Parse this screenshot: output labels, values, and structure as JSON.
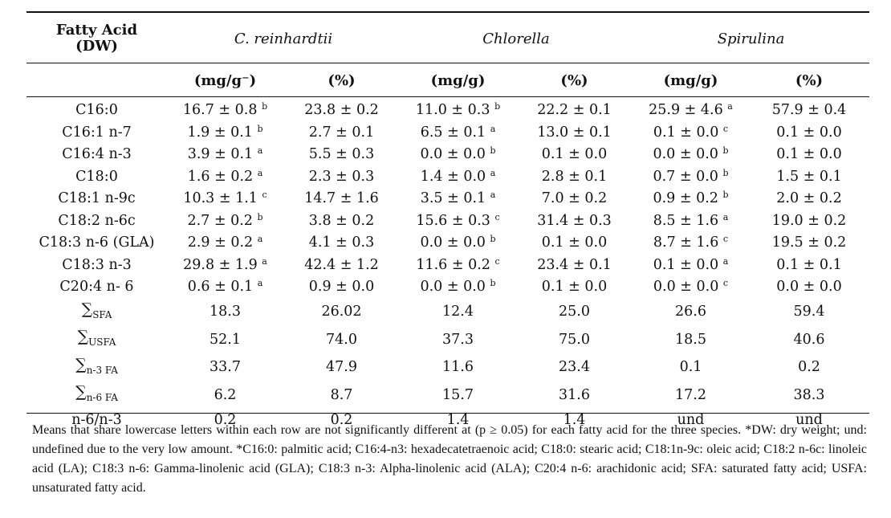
{
  "header": {
    "fatty_acid_label_line1": "Fatty Acid",
    "fatty_acid_label_line2": "(DW)",
    "species": [
      "C. reinhardtii",
      "Chlorella",
      "Spirulina"
    ],
    "units": [
      "(mg/g⁻)",
      "(%)",
      "(mg/g)",
      "(%)",
      "(mg/g)",
      "(%)"
    ]
  },
  "rows": [
    {
      "label": "C16:0",
      "cells": [
        {
          "v": "16.7 ± 0.8",
          "sup": "b"
        },
        {
          "v": "23.8 ± 0.2"
        },
        {
          "v": "11.0 ± 0.3",
          "sup": "b"
        },
        {
          "v": "22.2 ± 0.1"
        },
        {
          "v": "25.9 ± 4.6",
          "sup": "a"
        },
        {
          "v": "57.9 ± 0.4"
        }
      ]
    },
    {
      "label": "C16:1 n-7",
      "cells": [
        {
          "v": "1.9 ± 0.1",
          "sup": "b"
        },
        {
          "v": "2.7 ± 0.1"
        },
        {
          "v": "6.5 ± 0.1",
          "sup": "a"
        },
        {
          "v": "13.0 ± 0.1"
        },
        {
          "v": "0.1 ± 0.0",
          "sup": "c"
        },
        {
          "v": "0.1 ± 0.0"
        }
      ]
    },
    {
      "label": "C16:4 n-3",
      "cells": [
        {
          "v": "3.9 ± 0.1",
          "sup": "a"
        },
        {
          "v": "5.5 ± 0.3"
        },
        {
          "v": "0.0 ± 0.0",
          "sup": "b"
        },
        {
          "v": "0.1 ± 0.0"
        },
        {
          "v": "0.0 ± 0.0",
          "sup": "b"
        },
        {
          "v": "0.1 ± 0.0"
        }
      ]
    },
    {
      "label": "C18:0",
      "cells": [
        {
          "v": "1.6 ± 0.2",
          "sup": "a"
        },
        {
          "v": "2.3 ± 0.3"
        },
        {
          "v": "1.4 ± 0.0",
          "sup": "a"
        },
        {
          "v": "2.8 ± 0.1"
        },
        {
          "v": "0.7 ± 0.0",
          "sup": "b"
        },
        {
          "v": "1.5 ± 0.1"
        }
      ]
    },
    {
      "label": "C18:1 n-9c",
      "cells": [
        {
          "v": "10.3 ± 1.1",
          "sup": "c"
        },
        {
          "v": "14.7 ± 1.6"
        },
        {
          "v": "3.5 ± 0.1",
          "sup": "a"
        },
        {
          "v": "7.0 ± 0.2"
        },
        {
          "v": "0.9 ± 0.2",
          "sup": "b"
        },
        {
          "v": "2.0 ± 0.2"
        }
      ]
    },
    {
      "label": "C18:2 n-6c",
      "cells": [
        {
          "v": "2.7 ± 0.2",
          "sup": "b"
        },
        {
          "v": "3.8 ± 0.2"
        },
        {
          "v": "15.6 ± 0.3",
          "sup": "c"
        },
        {
          "v": "31.4 ± 0.3"
        },
        {
          "v": "8.5 ± 1.6",
          "sup": "a"
        },
        {
          "v": "19.0 ± 0.2"
        }
      ]
    },
    {
      "label": "C18:3 n-6 (GLA)",
      "cells": [
        {
          "v": "2.9 ± 0.2",
          "sup": "a"
        },
        {
          "v": "4.1 ± 0.3"
        },
        {
          "v": "0.0 ± 0.0",
          "sup": "b"
        },
        {
          "v": "0.1 ± 0.0"
        },
        {
          "v": "8.7 ± 1.6",
          "sup": "c"
        },
        {
          "v": "19.5 ± 0.2"
        }
      ]
    },
    {
      "label": "C18:3 n-3",
      "cells": [
        {
          "v": "29.8 ± 1.9",
          "sup": "a"
        },
        {
          "v": "42.4 ± 1.2"
        },
        {
          "v": "11.6 ± 0.2",
          "sup": "c"
        },
        {
          "v": "23.4 ± 0.1"
        },
        {
          "v": "0.1 ± 0.0",
          "sup": "a"
        },
        {
          "v": "0.1 ± 0.1"
        }
      ]
    },
    {
      "label": "C20:4 n- 6",
      "cells": [
        {
          "v": "0.6 ± 0.1",
          "sup": "a"
        },
        {
          "v": "0.9 ± 0.0"
        },
        {
          "v": "0.0 ± 0.0",
          "sup": "b"
        },
        {
          "v": "0.1 ± 0.0"
        },
        {
          "v": "0.0 ± 0.0",
          "sup": "c"
        },
        {
          "v": "0.0 ± 0.0"
        }
      ]
    },
    {
      "label": "∑SFA",
      "sum": "SFA",
      "cells": [
        {
          "v": "18.3"
        },
        {
          "v": "26.02"
        },
        {
          "v": "12.4"
        },
        {
          "v": "25.0"
        },
        {
          "v": "26.6"
        },
        {
          "v": "59.4"
        }
      ]
    },
    {
      "label": "∑USFA",
      "sum": "USFA",
      "cells": [
        {
          "v": "52.1"
        },
        {
          "v": "74.0"
        },
        {
          "v": "37.3"
        },
        {
          "v": "75.0"
        },
        {
          "v": "18.5"
        },
        {
          "v": "40.6"
        }
      ]
    },
    {
      "label": "∑n-3 FA",
      "sum": "n-3 FA",
      "cells": [
        {
          "v": "33.7"
        },
        {
          "v": "47.9"
        },
        {
          "v": "11.6"
        },
        {
          "v": "23.4"
        },
        {
          "v": "0.1"
        },
        {
          "v": "0.2"
        }
      ]
    },
    {
      "label": "∑n-6 FA",
      "sum": "n-6 FA",
      "cells": [
        {
          "v": "6.2"
        },
        {
          "v": "8.7"
        },
        {
          "v": "15.7"
        },
        {
          "v": "31.6"
        },
        {
          "v": "17.2"
        },
        {
          "v": "38.3"
        }
      ]
    },
    {
      "label": "n-6/n-3",
      "cells": [
        {
          "v": "0.2"
        },
        {
          "v": "0.2"
        },
        {
          "v": "1.4"
        },
        {
          "v": "1.4"
        },
        {
          "v": "und"
        },
        {
          "v": "und"
        }
      ]
    }
  ],
  "footnote": "Means that share lowercase letters within each row are not significantly different at (p ≥ 0.05) for each fatty acid for the three species. *DW: dry weight; und: undefined due to the very low amount. *C16:0: palmitic acid; C16:4-n3: hexadecatetraenoic acid; C18:0: stearic acid; C18:1n-9c: oleic acid; C18:2 n-6c: linoleic acid (LA); C18:3 n-6: Gamma-linolenic acid (GLA); C18:3 n-3: Alpha-linolenic acid (ALA); C20:4 n-6: arachidonic acid; SFA: saturated fatty acid; USFA: unsaturated fatty acid."
}
